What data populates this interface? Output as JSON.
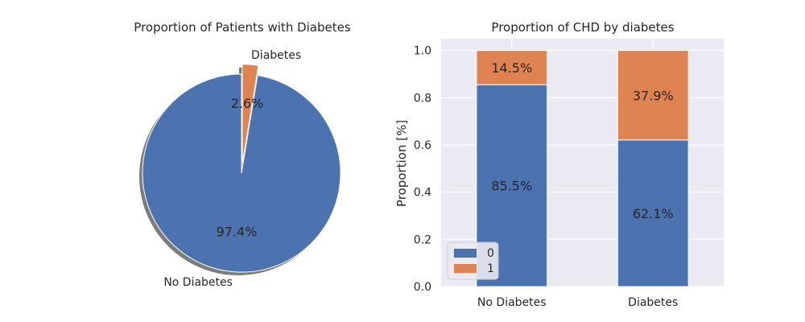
{
  "colors": {
    "blue": "#4c72b0",
    "orange": "#dd8452",
    "panel_bg": "#eaeaf2",
    "grid": "#ffffff"
  },
  "chart_data": [
    {
      "type": "pie",
      "title": "Proportion of Patients with Diabetes",
      "labels": [
        "No Diabetes",
        "Diabetes"
      ],
      "values": [
        97.4,
        2.6
      ],
      "pct_labels": [
        "97.4%",
        "2.6%"
      ],
      "exploded": "Diabetes",
      "shadow": true
    },
    {
      "type": "bar",
      "stacked": true,
      "title": "Proportion of CHD by diabetes",
      "xlabel": "",
      "ylabel": "Proportion [%]",
      "categories": [
        "No Diabetes",
        "Diabetes"
      ],
      "series": [
        {
          "name": "0",
          "values": [
            0.855,
            0.621
          ],
          "labels": [
            "85.5%",
            "62.1%"
          ]
        },
        {
          "name": "1",
          "values": [
            0.145,
            0.379
          ],
          "labels": [
            "14.5%",
            "37.9%"
          ]
        }
      ],
      "ylim": [
        0,
        1.05
      ],
      "yticks": [
        "0.0",
        "0.2",
        "0.4",
        "0.6",
        "0.8",
        "1.0"
      ],
      "grid": true,
      "legend": "lower-left"
    }
  ]
}
